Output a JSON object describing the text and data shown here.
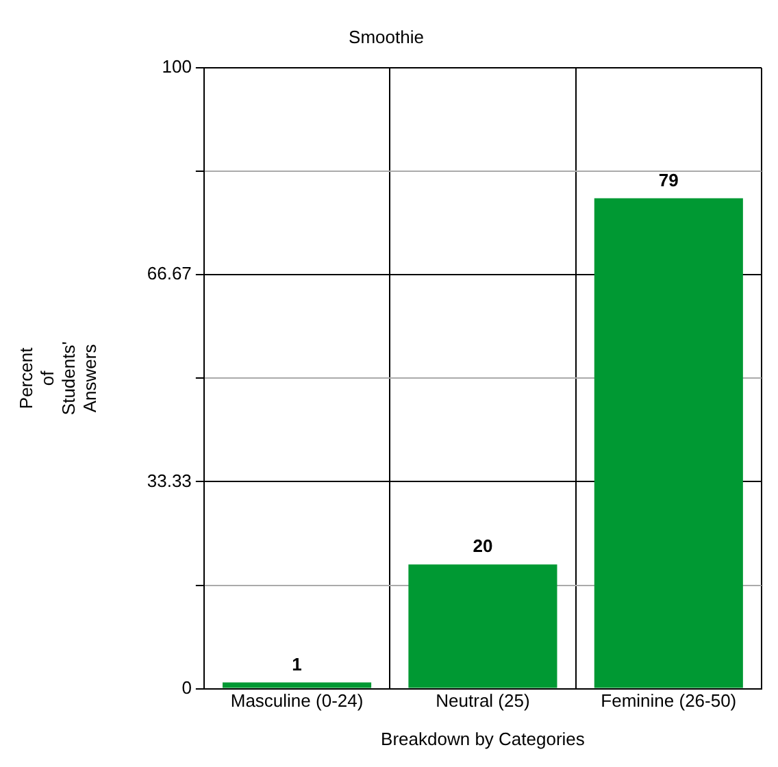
{
  "chart_data": {
    "type": "bar",
    "title": "Smoothie",
    "xlabel": "Breakdown by Categories",
    "ylabel": "Percent of Students' Answers",
    "categories": [
      "Masculine (0-24)",
      "Neutral (25)",
      "Feminine (26-50)"
    ],
    "values": [
      1,
      20,
      79
    ],
    "color": "#009933",
    "ylim": [
      0,
      100
    ],
    "yticks": [
      0,
      {
        "value": 16.67,
        "label": null
      },
      33.33,
      {
        "value": 50,
        "label": null
      },
      66.67,
      {
        "value": 83.33,
        "label": null
      },
      100
    ],
    "grid": true,
    "data_labels": true,
    "legend": false
  }
}
